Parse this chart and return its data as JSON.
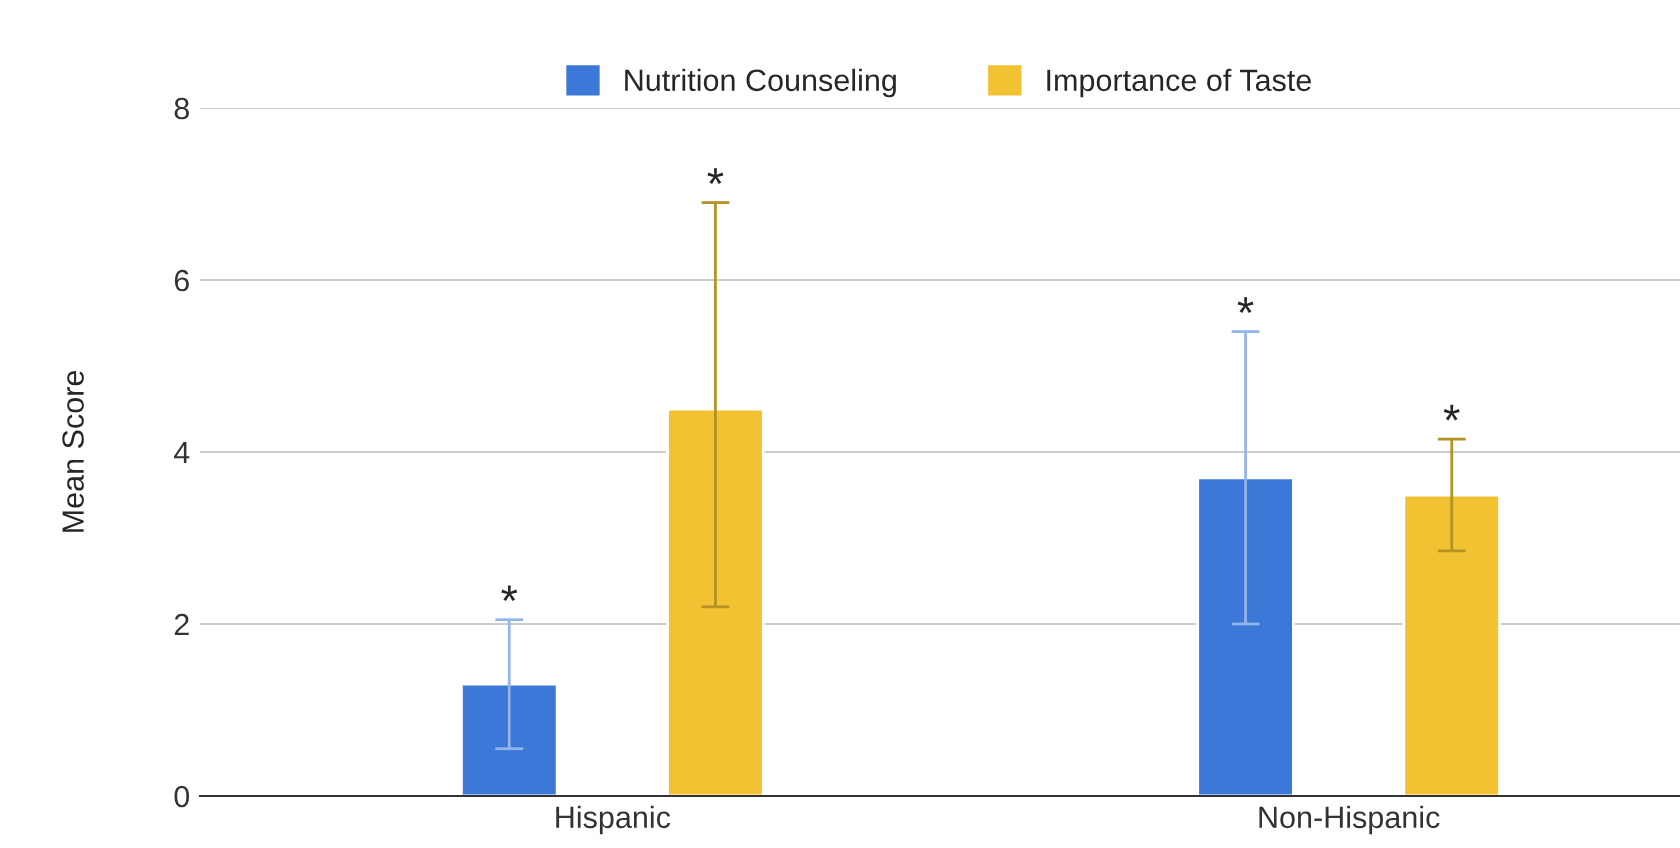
{
  "chart_data": {
    "type": "bar",
    "ylabel": "Mean Score",
    "categories": [
      "Hispanic",
      "Non-Hispanic"
    ],
    "series": [
      {
        "name": "Nutrition Counseling",
        "color": "#3c78d8",
        "values": [
          1.3,
          3.7
        ],
        "errors": [
          [
            0.55,
            2.05
          ],
          [
            2.0,
            5.4
          ]
        ]
      },
      {
        "name": "Importance of Taste",
        "color": "#f1c232",
        "values": [
          4.5,
          3.5
        ],
        "errors": [
          [
            2.2,
            6.9
          ],
          [
            2.85,
            4.15
          ]
        ]
      }
    ],
    "ylim": [
      0,
      8
    ],
    "yticks": [
      0,
      2,
      4,
      6,
      8
    ],
    "grid": "y",
    "legend": "top",
    "annotations": [
      "*",
      "*",
      "*",
      "*"
    ]
  }
}
